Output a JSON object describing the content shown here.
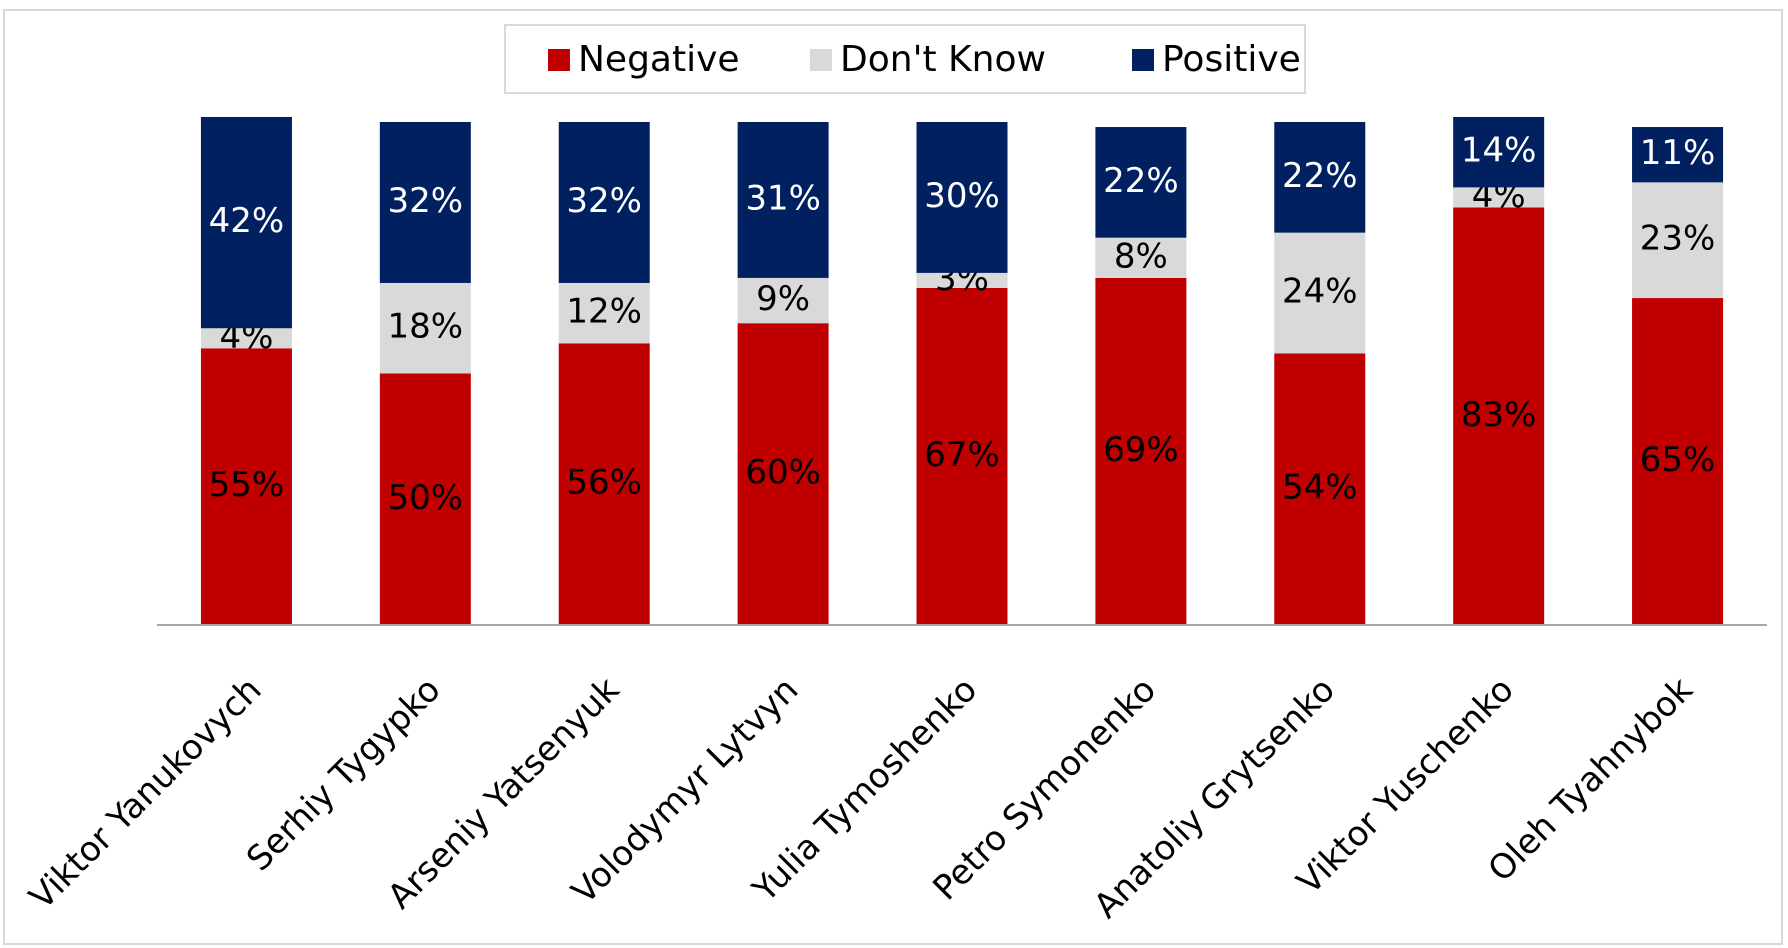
{
  "chart_data": {
    "type": "stacked_bar",
    "categories": [
      "Viktor Yanukovych",
      "Serhiy Tygypko",
      "Arseniy Yatsenyuk",
      "Volodymyr Lytvyn",
      "Yulia Tymoshenko",
      "Petro Symonenko",
      "Anatoliy Grytsenko",
      "Viktor Yuschenko",
      "Oleh Tyahnybok"
    ],
    "series": [
      {
        "name": "Negative",
        "color": "#c00000",
        "label_color": "#000000",
        "values": [
          55,
          50,
          56,
          60,
          67,
          69,
          54,
          83,
          65
        ],
        "value_labels": [
          "55%",
          "50%",
          "56%",
          "60%",
          "67%",
          "69%",
          "54%",
          "83%",
          "65%"
        ]
      },
      {
        "name": "Don't Know",
        "color": "#d9d9d9",
        "label_color": "#000000",
        "values": [
          4,
          18,
          12,
          9,
          3,
          8,
          24,
          4,
          23
        ],
        "value_labels": [
          "4%",
          "18%",
          "12%",
          "9%",
          "3%",
          "8%",
          "24%",
          "4%",
          "23%"
        ]
      },
      {
        "name": "Positive",
        "color": "#002060",
        "label_color": "#ffffff",
        "values": [
          42,
          32,
          32,
          31,
          30,
          22,
          22,
          14,
          11
        ],
        "value_labels": [
          "42%",
          "32%",
          "32%",
          "31%",
          "30%",
          "22%",
          "22%",
          "14%",
          "11%"
        ]
      }
    ],
    "ylim": [
      0,
      100
    ],
    "legend": "top"
  }
}
